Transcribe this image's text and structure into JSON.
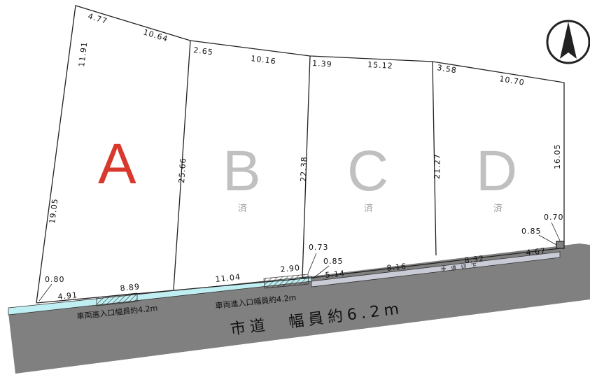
{
  "lots": [
    {
      "id": "A",
      "status": "",
      "color": "#d9382c"
    },
    {
      "id": "B",
      "status": "済",
      "color": "#c0c0c0"
    },
    {
      "id": "C",
      "status": "済",
      "color": "#c0c0c0"
    },
    {
      "id": "D",
      "status": "済",
      "color": "#c0c0c0"
    }
  ],
  "dimensions": {
    "a_top_left": "4.77",
    "a_top_right": "10.64",
    "a_left_upper": "11.91",
    "a_left_lower": "19.05",
    "a_bottom_corner": "0.80",
    "a_bottom_left": "4.91",
    "a_bottom_right": "8.89",
    "ab_boundary": "25.66",
    "b_top_left": "2.65",
    "b_top_right": "10.16",
    "b_bottom": "11.04",
    "b_bottom_right": "2.90",
    "bc_boundary": "22.38",
    "bc_corner_upper": "0.73",
    "bc_corner_lower": "0.85",
    "c_top_left": "1.39",
    "c_top_right": "15.12",
    "c_bottom_left": "5.14",
    "c_bottom_right": "8.16",
    "cd_boundary": "21.27",
    "d_top_left": "3.58",
    "d_top_right": "10.70",
    "d_right": "16.05",
    "d_corner_upper": "0.70",
    "d_corner_lower": "0.85",
    "d_bottom_left": "8.32",
    "d_bottom_right": "4.67"
  },
  "road": {
    "label": "市道　幅員約6.2m",
    "color": "#808080"
  },
  "entrances": [
    "車両進入口幅員約4.2m",
    "車両進入口幅員約4.2m"
  ],
  "walkway": "步 道 切 下",
  "compass": "north-arrow-icon"
}
